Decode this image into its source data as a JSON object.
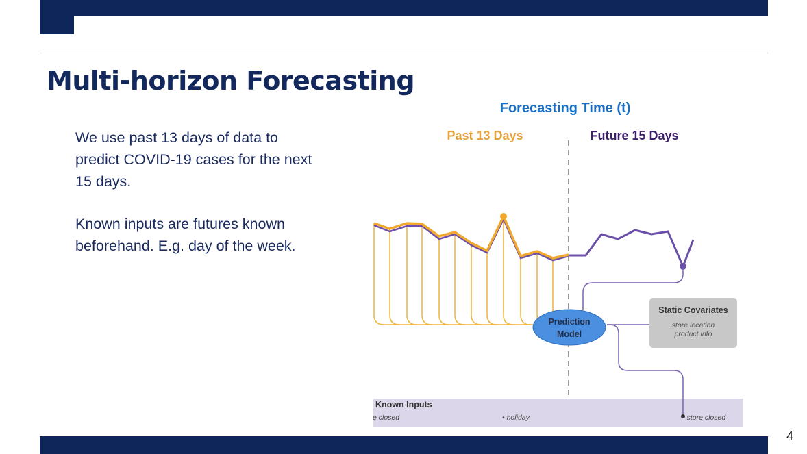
{
  "slide": {
    "title": "Multi-horizon Forecasting",
    "paragraph1": "We use past 13 days of data to predict COVID-19 cases for the next 15 days.",
    "paragraph2": "Known inputs are futures known beforehand. E.g. day of the week.",
    "page_number": "4"
  },
  "diagram": {
    "heading": "Forecasting Time (t)",
    "past_label": "Past 13 Days",
    "future_label": "Future 15 Days",
    "model_line1": "Prediction",
    "model_line2": "Model",
    "static_title": "Static Covariates",
    "static_item1": "store location",
    "static_item2": "product info",
    "known_title": "Known Inputs",
    "known_item1": "e closed",
    "known_item2": "• holiday",
    "known_item3": "• store closed"
  },
  "colors": {
    "navy": "#0e2659",
    "heading_blue": "#1a6fc4",
    "past_orange": "#e6a23c",
    "future_purple": "#3d1e6d",
    "series_purple": "#6b4fa8",
    "model_blue": "#4a8fe0"
  }
}
